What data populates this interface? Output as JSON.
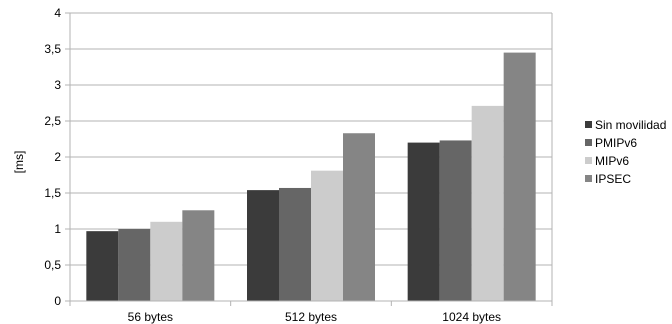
{
  "chart_data": {
    "type": "bar",
    "title": "",
    "xlabel": "",
    "ylabel": "[ms]",
    "ylim": [
      0,
      4
    ],
    "yticks": [
      "0",
      "0,5",
      "1",
      "1,5",
      "2",
      "2,5",
      "3",
      "3,5",
      "4"
    ],
    "categories": [
      "56 bytes",
      "512 bytes",
      "1024 bytes"
    ],
    "series": [
      {
        "name": "Sin movilidad",
        "color": "#3b3b3b",
        "values": [
          0.97,
          1.54,
          2.2
        ]
      },
      {
        "name": "PMIPv6",
        "color": "#666666",
        "values": [
          1.0,
          1.57,
          2.23
        ]
      },
      {
        "name": "MIPv6",
        "color": "#cccccc",
        "values": [
          1.1,
          1.81,
          2.71
        ]
      },
      {
        "name": "IPSEC",
        "color": "#858585",
        "values": [
          1.26,
          2.33,
          3.45
        ]
      }
    ],
    "grid": true,
    "legend_position": "right"
  }
}
